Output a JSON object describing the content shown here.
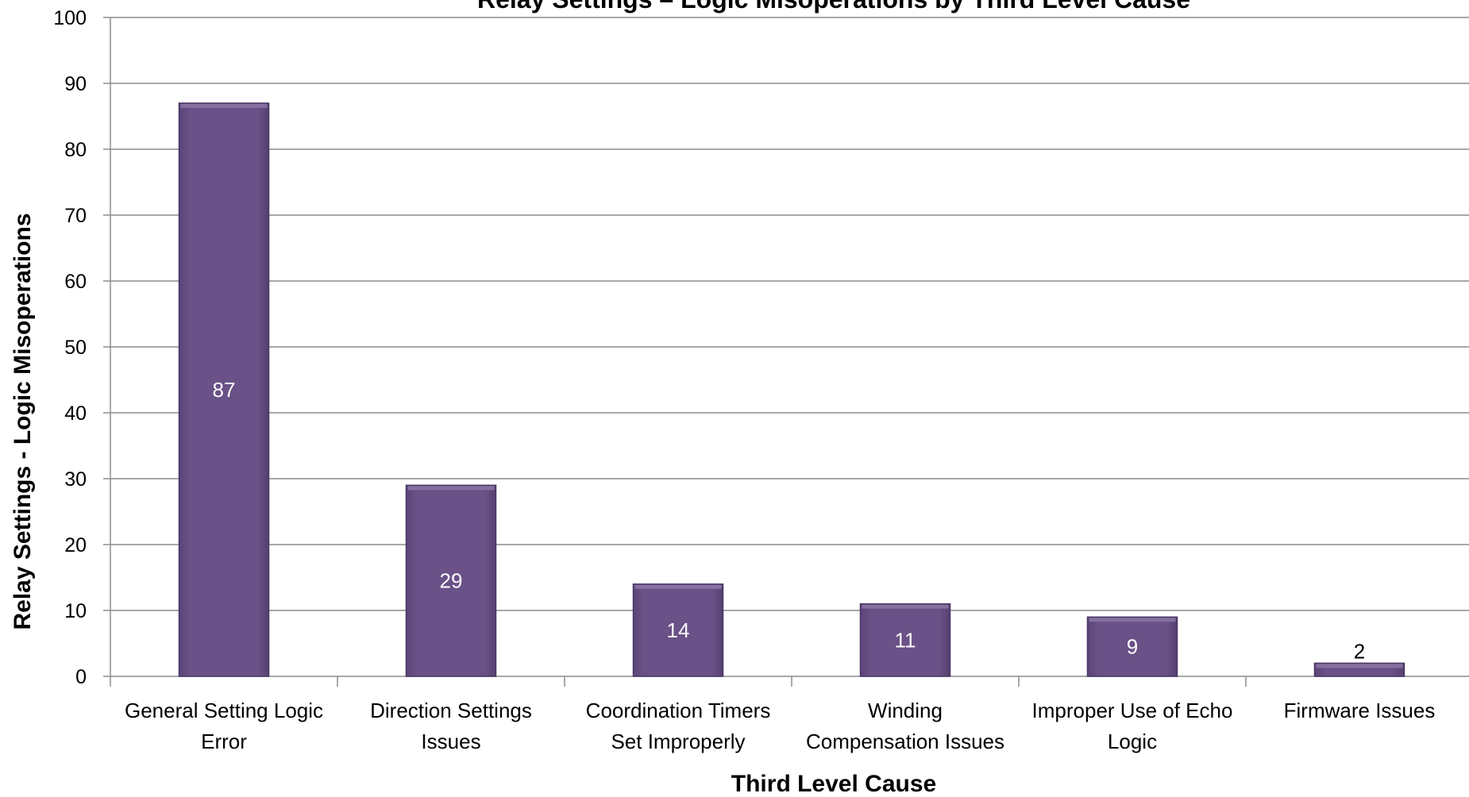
{
  "chart_data": {
    "type": "bar",
    "title": "Relay Settings – Logic Misoperations by Third Level Cause",
    "xlabel": "Third Level Cause",
    "ylabel": "Relay Settings - Logic Misoperations",
    "categories": [
      [
        "General Setting Logic",
        "Error"
      ],
      [
        "Direction Settings",
        "Issues"
      ],
      [
        "Coordination Timers",
        "Set Improperly"
      ],
      [
        "Winding",
        "Compensation Issues"
      ],
      [
        "Improper Use of Echo",
        "Logic"
      ],
      [
        "Firmware Issues"
      ]
    ],
    "values": [
      87,
      29,
      14,
      11,
      9,
      2
    ],
    "data_labels": [
      "87",
      "29",
      "14",
      "11",
      "9",
      "2"
    ],
    "ylim": [
      0,
      100
    ],
    "yticks": [
      "0",
      "10",
      "20",
      "30",
      "40",
      "50",
      "60",
      "70",
      "80",
      "90",
      "100"
    ],
    "grid": true,
    "legend": "none",
    "bar_color": "#6a5187",
    "bar_edge_color": "#4a3766",
    "label_color_inside": "#ffffff",
    "label_color_outside": "#000000",
    "grid_color": "#8c8c8c",
    "axis_color": "#8c8c8c"
  }
}
